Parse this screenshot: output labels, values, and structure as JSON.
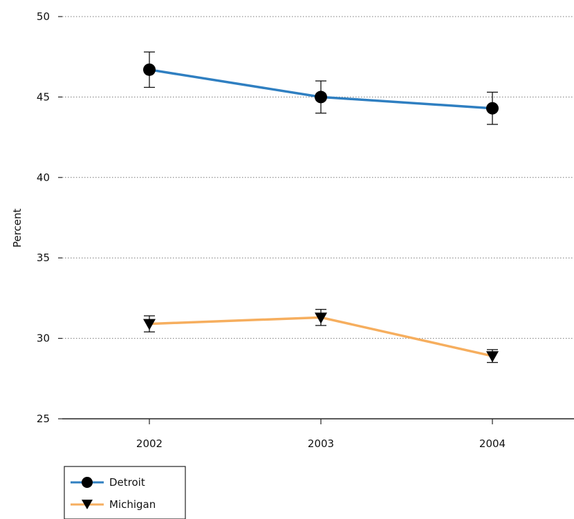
{
  "chart_data": {
    "type": "line",
    "title": "",
    "xlabel": "",
    "ylabel": "Percent",
    "ylim": [
      25,
      50
    ],
    "yticks": [
      "25",
      "30",
      "35",
      "40",
      "45",
      "50"
    ],
    "categories": [
      "2002",
      "2003",
      "2004"
    ],
    "grid": "horizontal dotted",
    "legend_position": "bottom-left",
    "series": [
      {
        "name": "Detroit",
        "color": "#2f7fc1",
        "marker": "circle",
        "values": [
          46.7,
          45.0,
          44.3
        ],
        "error_low": [
          45.6,
          44.0,
          43.3
        ],
        "error_high": [
          47.8,
          46.0,
          45.3
        ]
      },
      {
        "name": "Michigan",
        "color": "#f6ae5e",
        "marker": "triangle-down",
        "values": [
          30.9,
          31.3,
          28.9
        ],
        "error_low": [
          30.4,
          30.8,
          28.5
        ],
        "error_high": [
          31.4,
          31.8,
          29.3
        ]
      }
    ]
  }
}
